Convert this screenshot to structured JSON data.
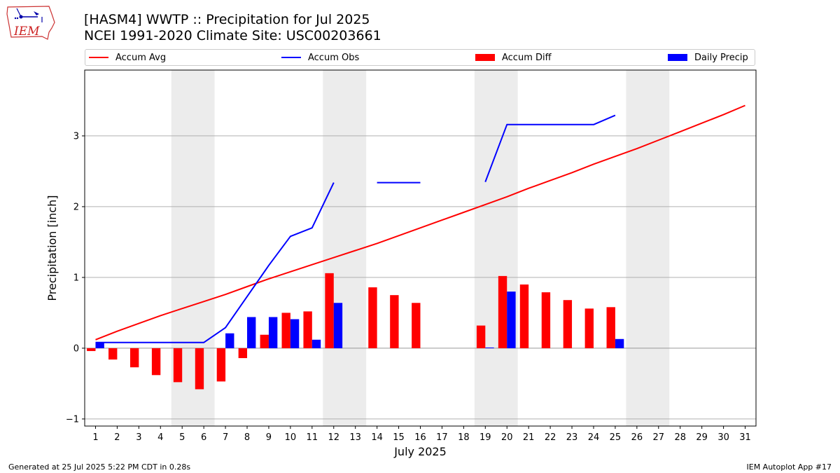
{
  "title": {
    "line1": "[HASM4] WWTP :: Precipitation for Jul 2025",
    "line2": "NCEI 1991-2020 Climate Site: USC00203661"
  },
  "logo": {
    "text": "IEM"
  },
  "footer": {
    "left": "Generated at 25 Jul 2025 5:22 PM CDT in 0.28s",
    "right": "IEM Autoplot App #17"
  },
  "legend": {
    "placement": "top",
    "items": [
      {
        "label": "Accum Avg",
        "kind": "line",
        "color": "#ff0000"
      },
      {
        "label": "Accum Obs",
        "kind": "line",
        "color": "#0000ff"
      },
      {
        "label": "Accum Diff",
        "kind": "bar",
        "color": "#ff0000"
      },
      {
        "label": "Daily Precip",
        "kind": "bar",
        "color": "#0000ff"
      }
    ]
  },
  "chart_data": {
    "type": "bar",
    "xlabel": "July 2025",
    "ylabel": "Precipitation [inch]",
    "x": [
      1,
      2,
      3,
      4,
      5,
      6,
      7,
      8,
      9,
      10,
      11,
      12,
      13,
      14,
      15,
      16,
      17,
      18,
      19,
      20,
      21,
      22,
      23,
      24,
      25,
      26,
      27,
      28,
      29,
      30,
      31
    ],
    "x_ticks": [
      "1",
      "2",
      "3",
      "4",
      "5",
      "6",
      "7",
      "8",
      "9",
      "10",
      "11",
      "12",
      "13",
      "14",
      "15",
      "16",
      "17",
      "18",
      "19",
      "20",
      "21",
      "22",
      "23",
      "24",
      "25",
      "26",
      "27",
      "28",
      "29",
      "30",
      "31"
    ],
    "xlim": [
      0.5,
      31.5
    ],
    "ylim": [
      -1.1,
      3.93
    ],
    "y_ticks": [
      -1,
      0,
      1,
      2,
      3
    ],
    "y_tick_labels": [
      "−1",
      "0",
      "1",
      "2",
      "3"
    ],
    "grid": "y",
    "weekend_shading": [
      [
        4.5,
        6.5
      ],
      [
        11.5,
        13.5
      ],
      [
        18.5,
        20.5
      ],
      [
        25.5,
        27.5
      ]
    ],
    "weekend_color": "#ececec",
    "series": [
      {
        "name": "Accum Avg",
        "kind": "line",
        "color": "#ff0000",
        "values": [
          0.12,
          0.24,
          0.35,
          0.46,
          0.56,
          0.66,
          0.76,
          0.87,
          0.98,
          1.08,
          1.18,
          1.28,
          1.38,
          1.48,
          1.59,
          1.7,
          1.81,
          1.92,
          2.03,
          2.14,
          2.26,
          2.37,
          2.48,
          2.6,
          2.71,
          2.82,
          2.94,
          3.06,
          3.18,
          3.3,
          3.43
        ]
      },
      {
        "name": "Accum Obs",
        "kind": "line",
        "color": "#0000ff",
        "values": [
          0.08,
          0.08,
          0.08,
          0.08,
          0.08,
          0.08,
          0.29,
          0.73,
          1.17,
          1.58,
          1.7,
          2.34,
          null,
          2.34,
          2.34,
          2.34,
          null,
          null,
          2.35,
          3.16,
          3.16,
          3.16,
          3.16,
          3.16,
          3.29,
          null,
          null,
          null,
          null,
          null,
          null
        ]
      },
      {
        "name": "Accum Diff",
        "kind": "bar",
        "color": "#ff0000",
        "values": [
          -0.04,
          -0.16,
          -0.27,
          -0.38,
          -0.48,
          -0.58,
          -0.47,
          -0.14,
          0.19,
          0.5,
          0.52,
          1.06,
          null,
          0.86,
          0.75,
          0.64,
          null,
          null,
          0.32,
          1.02,
          0.9,
          0.79,
          0.68,
          0.56,
          0.58,
          null,
          null,
          null,
          null,
          null,
          null
        ]
      },
      {
        "name": "Daily Precip",
        "kind": "bar",
        "color": "#0000ff",
        "values": [
          0.08,
          0,
          0,
          0,
          0,
          0,
          0.21,
          0.44,
          0.44,
          0.41,
          0.12,
          0.64,
          null,
          0,
          0,
          0,
          null,
          null,
          0.01,
          0.8,
          0,
          0,
          0,
          0,
          0.13,
          null,
          null,
          null,
          null,
          null,
          null
        ]
      }
    ]
  }
}
